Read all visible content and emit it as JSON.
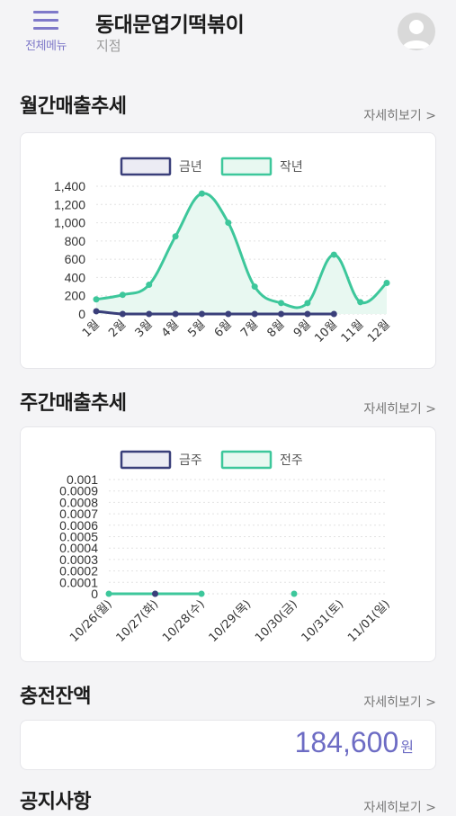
{
  "header": {
    "menu_label": "전체메뉴",
    "store_name": "동대문엽기떡볶이",
    "branch": "지점"
  },
  "monthly": {
    "title": "월간매출추세",
    "more": "자세히보기 >"
  },
  "weekly": {
    "title": "주간매출추세",
    "more": "자세히보기 >"
  },
  "balance": {
    "title": "충전잔액",
    "more": "자세히보기 >",
    "value": "184,600",
    "unit": "원"
  },
  "notice": {
    "title": "공지사항",
    "more": "자세히보기 >"
  },
  "colors": {
    "accent": "#7f79c9",
    "current": "#3a3f7a",
    "previous": "#3dc79b",
    "previous_fill": "#e8f8f1"
  },
  "chart_data": [
    {
      "type": "line",
      "categories": [
        "1월",
        "2월",
        "3월",
        "4월",
        "5월",
        "6월",
        "7월",
        "8월",
        "9월",
        "10월",
        "11월",
        "12월"
      ],
      "series": [
        {
          "name": "금년",
          "values": [
            30,
            0,
            0,
            0,
            0,
            0,
            0,
            0,
            0,
            0,
            null,
            null
          ]
        },
        {
          "name": "작년",
          "values": [
            160,
            210,
            320,
            850,
            1320,
            1000,
            300,
            120,
            120,
            650,
            130,
            340
          ]
        }
      ],
      "ylim": [
        0,
        1400
      ],
      "yticks": [
        "0",
        "200",
        "400",
        "600",
        "800",
        "1,000",
        "1,200",
        "1,400"
      ],
      "legend": "top",
      "grid": true
    },
    {
      "type": "line",
      "categories": [
        "10/26(월)",
        "10/27(화)",
        "10/28(수)",
        "10/29(목)",
        "10/30(금)",
        "10/31(토)",
        "11/01(일)"
      ],
      "series": [
        {
          "name": "금주",
          "values": [
            null,
            0,
            null,
            null,
            null,
            null,
            null
          ]
        },
        {
          "name": "전주",
          "values": [
            0,
            0,
            0,
            null,
            0,
            null,
            null
          ]
        }
      ],
      "ylim": [
        0,
        0.001
      ],
      "yticks": [
        "0",
        "0.0001",
        "0.0002",
        "0.0003",
        "0.0004",
        "0.0005",
        "0.0006",
        "0.0007",
        "0.0008",
        "0.0009",
        "0.001"
      ],
      "legend": "top",
      "grid": true
    }
  ]
}
